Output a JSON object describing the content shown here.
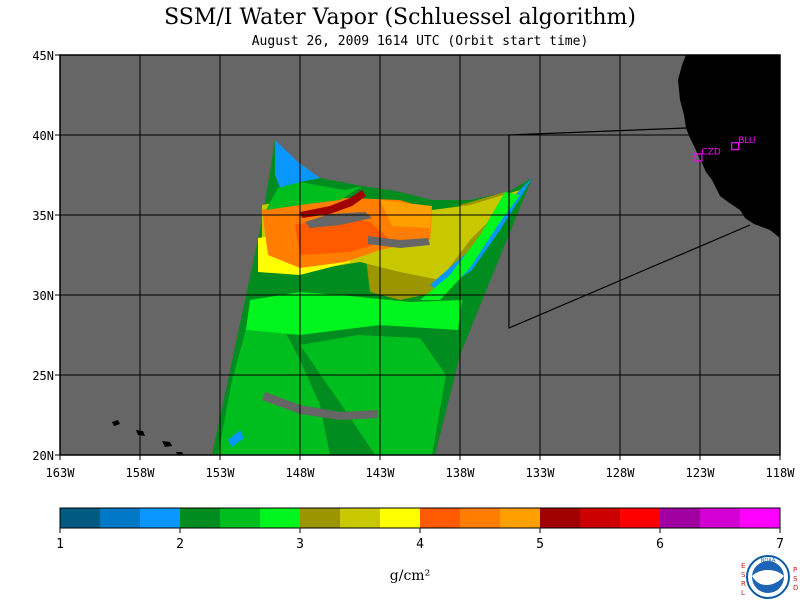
{
  "title": "SSM/I Water Vapor (Schluessel algorithm)",
  "subtitle": "August 26, 2009  1614 UTC  (Orbit start time)",
  "map": {
    "lon_labels": [
      "163W",
      "158W",
      "153W",
      "148W",
      "143W",
      "138W",
      "133W",
      "128W",
      "123W",
      "118W"
    ],
    "lon_values": [
      -163,
      -158,
      -153,
      -148,
      -143,
      -138,
      -133,
      -128,
      -123,
      -118
    ],
    "lat_labels": [
      "45N",
      "40N",
      "35N",
      "30N",
      "25N",
      "20N"
    ],
    "lat_values": [
      45,
      40,
      35,
      30,
      25,
      20
    ],
    "lon_range": [
      -163,
      -118
    ],
    "lat_range": [
      20,
      45
    ],
    "ocean_color": "#666666",
    "land_color": "#000000",
    "sites": [
      {
        "label": "CZD",
        "lon": -123.1,
        "lat": 38.6
      },
      {
        "label": "BLU",
        "lon": -120.8,
        "lat": 39.3
      }
    ]
  },
  "colorbar": {
    "colors": [
      "#005a82",
      "#0078c8",
      "#0a96ff",
      "#008c1e",
      "#00be1e",
      "#00f51e",
      "#9b9600",
      "#c8c800",
      "#ffff00",
      "#ff5a00",
      "#ff7d00",
      "#ffa000",
      "#a00000",
      "#cc0000",
      "#ff0000",
      "#a000a0",
      "#d200d2",
      "#ff00ff"
    ],
    "tick_labels": [
      "1",
      "2",
      "3",
      "4",
      "5",
      "6",
      "7"
    ],
    "units": "g/cm²"
  },
  "logo": {
    "left_letters": [
      "E",
      "S",
      "R",
      "L"
    ],
    "right_letters": [
      "P",
      "S",
      "D"
    ],
    "center_text": "NOAA"
  }
}
